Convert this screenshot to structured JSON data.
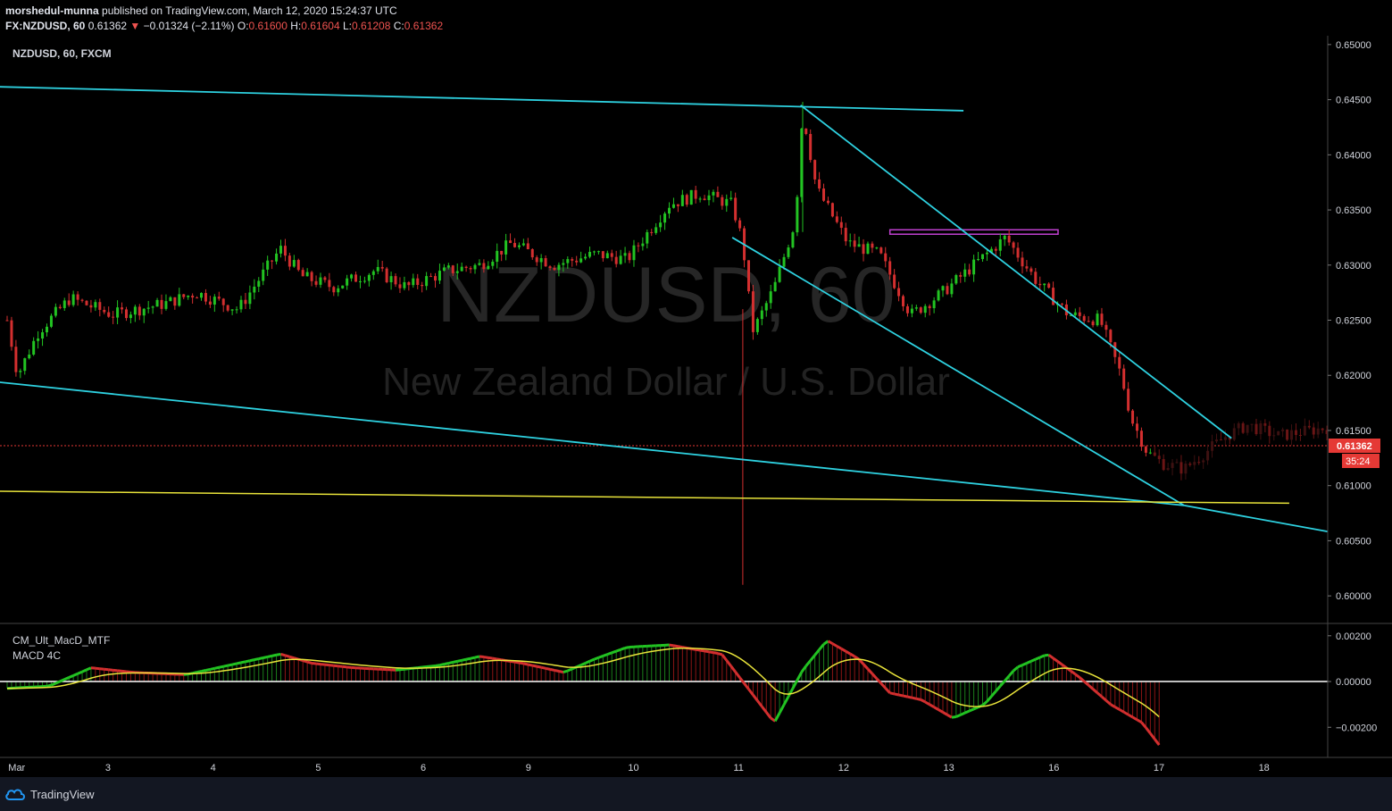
{
  "header": {
    "publisher": "morshedul-munna",
    "published_text": "published on TradingView.com, March 12, 2020 15:24:37 UTC",
    "symbol": "FX:NZDUSD, 60",
    "last": "0.61362",
    "change": "−0.01324 (−2.11%)",
    "o_label": "O:",
    "o_val": "0.61600",
    "h_label": "H:",
    "h_val": "0.61604",
    "l_label": "L:",
    "l_val": "0.61208",
    "c_label": "C:",
    "c_val": "0.61362"
  },
  "legend": {
    "symbol_title": "NZDUSD, 60, FXCM"
  },
  "watermark": {
    "line1": "NZDUSD, 60",
    "line2": "New Zealand Dollar / U.S. Dollar"
  },
  "indicator": {
    "name": "CM_Ult_MacD_MTF",
    "sub": "MACD 4C"
  },
  "footer": {
    "brand": "TradingView"
  },
  "price_tag": {
    "value": "0.61362",
    "countdown": "35:24"
  },
  "colors": {
    "up": "#22c322",
    "down": "#d32f2f",
    "trendline": "#2ed1e0",
    "support": "#e8e33a",
    "resistance_box": "#c040d0",
    "price_tag": "#e53935",
    "background": "#000000"
  },
  "chart_data": {
    "type": "candlestick",
    "symbol": "NZDUSD",
    "timeframe": "60",
    "x_ticks": [
      "Mar",
      "3",
      "4",
      "5",
      "6",
      "9",
      "10",
      "11",
      "12",
      "13",
      "16",
      "17",
      "18"
    ],
    "y_ticks": [
      "0.65000",
      "0.64500",
      "0.64000",
      "0.63500",
      "0.63000",
      "0.62500",
      "0.62000",
      "0.61500",
      "0.61000",
      "0.60500",
      "0.60000"
    ],
    "ylim": [
      0.5975,
      0.6508
    ],
    "last_price": 0.61362,
    "candle_path": [
      {
        "d": 0.0,
        "p": 0.625
      },
      {
        "d": 0.1,
        "p": 0.62
      },
      {
        "d": 0.3,
        "p": 0.624
      },
      {
        "d": 0.6,
        "p": 0.627
      },
      {
        "d": 1.0,
        "p": 0.6255
      },
      {
        "d": 1.5,
        "p": 0.6265
      },
      {
        "d": 1.8,
        "p": 0.6275
      },
      {
        "d": 2.2,
        "p": 0.626
      },
      {
        "d": 2.6,
        "p": 0.6315
      },
      {
        "d": 2.8,
        "p": 0.629
      },
      {
        "d": 3.1,
        "p": 0.628
      },
      {
        "d": 3.5,
        "p": 0.6295
      },
      {
        "d": 3.8,
        "p": 0.628
      },
      {
        "d": 4.2,
        "p": 0.6295
      },
      {
        "d": 4.5,
        "p": 0.63
      },
      {
        "d": 4.8,
        "p": 0.632
      },
      {
        "d": 5.2,
        "p": 0.63
      },
      {
        "d": 5.6,
        "p": 0.631
      },
      {
        "d": 5.9,
        "p": 0.6305
      },
      {
        "d": 6.3,
        "p": 0.6355
      },
      {
        "d": 6.6,
        "p": 0.6365
      },
      {
        "d": 6.9,
        "p": 0.6355
      },
      {
        "d": 7.0,
        "p": 0.632
      },
      {
        "d": 7.05,
        "p": 0.6275
      },
      {
        "d": 7.1,
        "p": 0.624
      },
      {
        "d": 7.3,
        "p": 0.628
      },
      {
        "d": 7.5,
        "p": 0.634
      },
      {
        "d": 7.57,
        "p": 0.644
      },
      {
        "d": 7.7,
        "p": 0.637
      },
      {
        "d": 8.0,
        "p": 0.632
      },
      {
        "d": 8.3,
        "p": 0.631
      },
      {
        "d": 8.6,
        "p": 0.6255
      },
      {
        "d": 8.9,
        "p": 0.6275
      },
      {
        "d": 9.2,
        "p": 0.63
      },
      {
        "d": 9.5,
        "p": 0.6325
      },
      {
        "d": 9.8,
        "p": 0.6285
      },
      {
        "d": 10.1,
        "p": 0.6255
      },
      {
        "d": 10.4,
        "p": 0.625
      },
      {
        "d": 10.6,
        "p": 0.62
      },
      {
        "d": 10.7,
        "p": 0.616
      },
      {
        "d": 10.85,
        "p": 0.613
      },
      {
        "d": 11.0,
        "p": 0.612
      },
      {
        "d": 11.2,
        "p": 0.6115
      },
      {
        "d": 11.4,
        "p": 0.613
      },
      {
        "d": 11.6,
        "p": 0.6145
      },
      {
        "d": 11.8,
        "p": 0.6155
      },
      {
        "d": 12.1,
        "p": 0.6145
      },
      {
        "d": 12.4,
        "p": 0.615
      },
      {
        "d": 12.7,
        "p": 0.6155
      },
      {
        "d": 13.0,
        "p": 0.6165
      },
      {
        "d": 13.1,
        "p": 0.62
      },
      {
        "d": 13.2,
        "p": 0.6185
      }
    ],
    "spikes": [
      {
        "d": 7.0,
        "low": 0.601,
        "high": 0.626,
        "close": 0.6205
      },
      {
        "d": 7.57,
        "low": 0.633,
        "high": 0.6448,
        "close": 0.643
      }
    ],
    "macd": {
      "ylim": [
        -0.0032,
        0.0025
      ],
      "y_ticks": [
        "0.00200",
        "0.00000",
        "-0.00200"
      ],
      "zero": 0.0,
      "series": [
        {
          "d": 0.0,
          "m": -0.0003
        },
        {
          "d": 0.4,
          "m": -0.0002
        },
        {
          "d": 0.8,
          "m": 0.0006
        },
        {
          "d": 1.2,
          "m": 0.0004
        },
        {
          "d": 1.7,
          "m": 0.0003
        },
        {
          "d": 2.2,
          "m": 0.0008
        },
        {
          "d": 2.6,
          "m": 0.0012
        },
        {
          "d": 2.9,
          "m": 0.0008
        },
        {
          "d": 3.3,
          "m": 0.0006
        },
        {
          "d": 3.7,
          "m": 0.0005
        },
        {
          "d": 4.1,
          "m": 0.0007
        },
        {
          "d": 4.5,
          "m": 0.0011
        },
        {
          "d": 4.9,
          "m": 0.0008
        },
        {
          "d": 5.3,
          "m": 0.0004
        },
        {
          "d": 5.6,
          "m": 0.001
        },
        {
          "d": 5.9,
          "m": 0.0015
        },
        {
          "d": 6.3,
          "m": 0.0016
        },
        {
          "d": 6.8,
          "m": 0.0012
        },
        {
          "d": 7.0,
          "m": 0.0
        },
        {
          "d": 7.3,
          "m": -0.0018
        },
        {
          "d": 7.57,
          "m": 0.0005
        },
        {
          "d": 7.8,
          "m": 0.0018
        },
        {
          "d": 8.1,
          "m": 0.001
        },
        {
          "d": 8.4,
          "m": -0.0005
        },
        {
          "d": 8.7,
          "m": -0.0008
        },
        {
          "d": 9.0,
          "m": -0.0016
        },
        {
          "d": 9.3,
          "m": -0.001
        },
        {
          "d": 9.6,
          "m": 0.0006
        },
        {
          "d": 9.9,
          "m": 0.0012
        },
        {
          "d": 10.2,
          "m": 0.0002
        },
        {
          "d": 10.5,
          "m": -0.001
        },
        {
          "d": 10.8,
          "m": -0.0018
        },
        {
          "d": 11.0,
          "m": -0.003
        }
      ]
    }
  },
  "annotations": {
    "trendlines": [
      {
        "d1": -0.2,
        "p1": 0.6462,
        "d2": 9.1,
        "p2": 0.644
      },
      {
        "d1": -0.2,
        "p1": 0.6195,
        "d2": 11.2,
        "p2": 0.6082
      },
      {
        "d1": 11.2,
        "p1": 0.6082,
        "d2": 12.7,
        "p2": 0.6056
      },
      {
        "d1": 7.55,
        "p1": 0.6445,
        "d2": 11.65,
        "p2": 0.6143
      },
      {
        "d1": 6.9,
        "p1": 0.6325,
        "d2": 11.2,
        "p2": 0.6082
      }
    ],
    "support": {
      "d1": -0.2,
      "p1": 0.6095,
      "d2": 12.2,
      "p2": 0.6084
    },
    "resistance_box": {
      "d1": 8.4,
      "d2": 10.0,
      "p_top": 0.6332,
      "p_bot": 0.6328
    }
  }
}
